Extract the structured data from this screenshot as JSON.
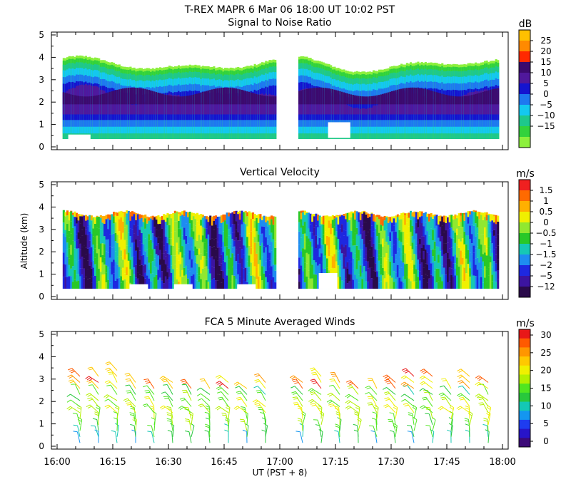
{
  "title": "T-REX   MAPR   6 Mar 06   18:00 UT   10:02   PST",
  "chart_data": [
    {
      "type": "heatmap",
      "title": "Signal to Noise Ratio",
      "ylabel": "",
      "ylim": [
        0,
        5
      ],
      "y_ticks": [
        "0",
        "1",
        "2",
        "3",
        "4",
        "5"
      ],
      "colorbar_unit": "dB",
      "colorbar_labels": [
        "25",
        "20",
        "15",
        "10",
        "5",
        "0",
        "−5",
        "−10",
        "−15"
      ],
      "colors": [
        "#ffc000",
        "#ff8a00",
        "#ff2a00",
        "#3c0a6e",
        "#50189c",
        "#1414d0",
        "#1e78f0",
        "#14c8f0",
        "#1ec88c",
        "#32d23c",
        "#8cf03c"
      ],
      "data_gap": [
        "16:59",
        "17:05"
      ]
    },
    {
      "type": "heatmap",
      "title": "Vertical Velocity",
      "ylabel": "Altitude (km)",
      "ylim": [
        0,
        5
      ],
      "y_ticks": [
        "0",
        "1",
        "2",
        "3",
        "4",
        "5"
      ],
      "colorbar_unit": "m/s",
      "colorbar_labels": [
        "1.5",
        "1",
        "0.5",
        "0",
        "−0.5",
        "−1",
        "−1.5",
        "−2",
        "−5",
        "−12"
      ],
      "colors": [
        "#f02020",
        "#ff6a00",
        "#ffb000",
        "#f0f000",
        "#90e830",
        "#28c828",
        "#16c8b4",
        "#1e8cf0",
        "#1e28e0",
        "#3c14a0",
        "#2a0a4a"
      ],
      "data_gap": [
        "16:59",
        "17:05"
      ]
    },
    {
      "type": "scatter",
      "title": "FCA 5 Minute Averaged Winds",
      "ylabel": "",
      "ylim": [
        0,
        5
      ],
      "y_ticks": [
        "0",
        "1",
        "2",
        "3",
        "4",
        "5"
      ],
      "colorbar_unit": "m/s",
      "colorbar_labels": [
        "30",
        "25",
        "20",
        "15",
        "10",
        "5",
        "0"
      ],
      "colors": [
        "#e81818",
        "#ff5a00",
        "#ff9600",
        "#ffc800",
        "#f0f000",
        "#b4f000",
        "#50e620",
        "#28c83c",
        "#14c8b4",
        "#1496f0",
        "#1e3cf0",
        "#2814c8",
        "#3c0a78"
      ]
    }
  ],
  "x_axis": {
    "label": "UT   (PST + 8)",
    "xlim": [
      "16:00",
      "18:00"
    ],
    "tick_labels": [
      "16:00",
      "16:15",
      "16:30",
      "16:45",
      "17:00",
      "17:15",
      "17:30",
      "17:45",
      "18:00"
    ]
  }
}
